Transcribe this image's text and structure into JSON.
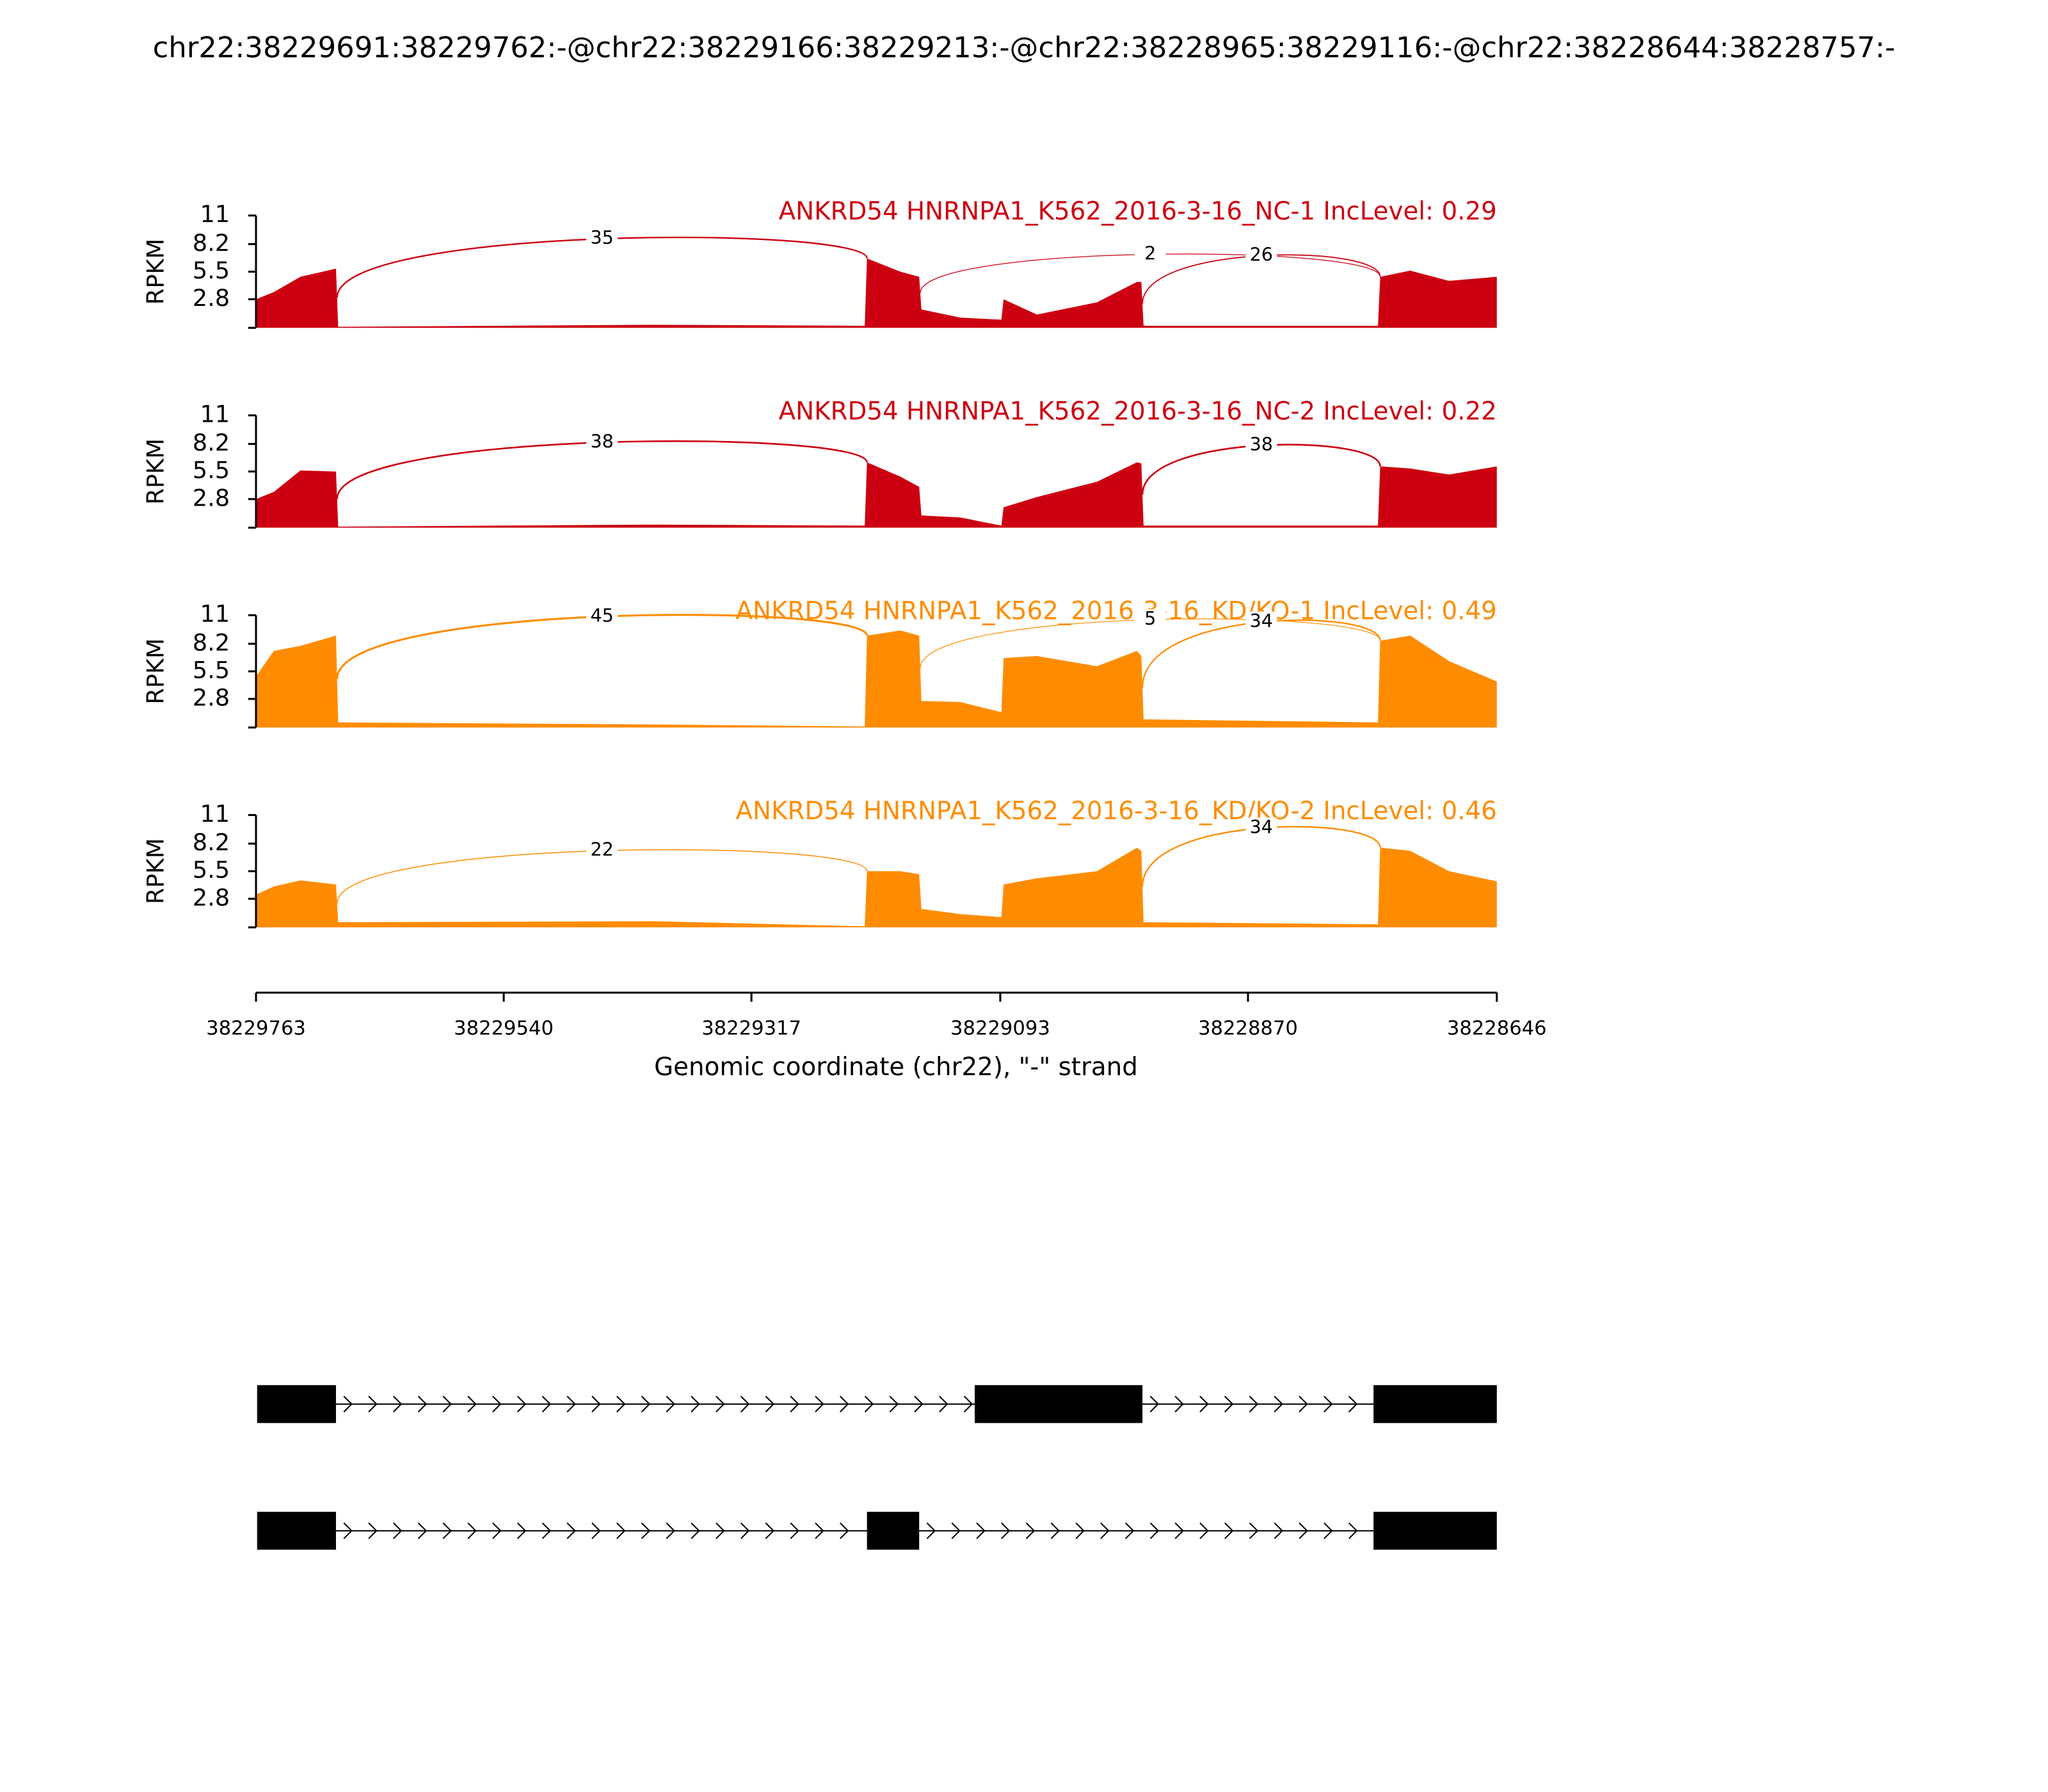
{
  "title": "chr22:38229691:38229762:-@chr22:38229166:38229213:-@chr22:38228965:38229116:-@chr22:38228644:38228757:-",
  "x_axis": {
    "xlim": [
      38229763,
      38228646
    ],
    "xticks": [
      38229763,
      38229540,
      38229317,
      38229093,
      38228870,
      38228646
    ],
    "xlabel": "Genomic coordinate (chr22), \"-\" strand"
  },
  "chart_data": [
    {
      "type": "area",
      "title": "ANKRD54 HNRNPA1_K562_2016-3-16_NC-1 IncLevel: 0.29",
      "color": "#cc0011",
      "ylabel": "RPKM",
      "ylim": [
        0,
        11
      ],
      "yticks": [
        2.8,
        5.5,
        8.2,
        11
      ],
      "x": [
        38229763,
        38229747,
        38229723,
        38229691,
        38229689,
        38229406,
        38229215,
        38229213,
        38229183,
        38229166,
        38229164,
        38229129,
        38229092,
        38229090,
        38229060,
        38229006,
        38228970,
        38228966,
        38228964,
        38228753,
        38228751,
        38228724,
        38228689,
        38228646
      ],
      "values": [
        2.8,
        3.5,
        5.0,
        5.8,
        0.1,
        0.3,
        0.2,
        6.8,
        5.5,
        5.0,
        1.8,
        1.0,
        0.8,
        2.8,
        1.3,
        2.5,
        4.5,
        4.5,
        0.2,
        0.2,
        5.0,
        5.6,
        4.6,
        5.0
      ],
      "junctions": [
        {
          "x": [
            38229690,
            38229213
          ],
          "value": 35
        },
        {
          "x": [
            38229165,
            38228751
          ],
          "value": 2
        },
        {
          "x": [
            38228965,
            38228751
          ],
          "value": 26
        }
      ]
    },
    {
      "type": "area",
      "title": "ANKRD54 HNRNPA1_K562_2016-3-16_NC-2 IncLevel: 0.22",
      "color": "#cc0011",
      "ylabel": "RPKM",
      "ylim": [
        0,
        11
      ],
      "yticks": [
        2.8,
        5.5,
        8.2,
        11
      ],
      "x": [
        38229763,
        38229747,
        38229723,
        38229691,
        38229689,
        38229406,
        38229215,
        38229213,
        38229183,
        38229166,
        38229164,
        38229129,
        38229092,
        38229090,
        38229060,
        38229006,
        38228970,
        38228966,
        38228964,
        38228753,
        38228751,
        38228724,
        38228689,
        38228646
      ],
      "values": [
        2.8,
        3.5,
        5.6,
        5.5,
        0.1,
        0.3,
        0.2,
        6.4,
        5.0,
        4.0,
        1.2,
        1.0,
        0.2,
        2.0,
        3.0,
        4.5,
        6.4,
        6.3,
        0.2,
        0.2,
        6.0,
        5.8,
        5.2,
        6.0
      ],
      "junctions": [
        {
          "x": [
            38229690,
            38229213
          ],
          "value": 38
        },
        {
          "x": [
            38228965,
            38228751
          ],
          "value": 38
        }
      ]
    },
    {
      "type": "area",
      "title": "ANKRD54 HNRNPA1_K562_2016-3-16_KD/KO-1 IncLevel: 0.49",
      "color": "#ff8c00",
      "ylabel": "RPKM",
      "ylim": [
        0,
        11
      ],
      "yticks": [
        2.8,
        5.5,
        8.2,
        11
      ],
      "x": [
        38229763,
        38229747,
        38229723,
        38229691,
        38229689,
        38229406,
        38229215,
        38229213,
        38229183,
        38229166,
        38229164,
        38229129,
        38229092,
        38229090,
        38229060,
        38229006,
        38228970,
        38228966,
        38228964,
        38228753,
        38228751,
        38228724,
        38228689,
        38228646
      ],
      "values": [
        5.0,
        7.5,
        8.0,
        9.0,
        0.5,
        0.3,
        0.1,
        9.0,
        9.5,
        9.0,
        2.6,
        2.5,
        1.5,
        6.8,
        7.0,
        6.0,
        7.5,
        7.0,
        0.8,
        0.5,
        8.5,
        9.0,
        6.5,
        4.5
      ],
      "junctions": [
        {
          "x": [
            38229690,
            38229213
          ],
          "value": 45
        },
        {
          "x": [
            38229165,
            38228751
          ],
          "value": 5
        },
        {
          "x": [
            38228965,
            38228751
          ],
          "value": 34
        }
      ]
    },
    {
      "type": "area",
      "title": "ANKRD54 HNRNPA1_K562_2016-3-16_KD/KO-2 IncLevel: 0.46",
      "color": "#ff8c00",
      "ylabel": "RPKM",
      "ylim": [
        0,
        11
      ],
      "yticks": [
        2.8,
        5.5,
        8.2,
        11
      ],
      "x": [
        38229763,
        38229747,
        38229723,
        38229691,
        38229689,
        38229406,
        38229215,
        38229213,
        38229183,
        38229166,
        38229164,
        38229129,
        38229092,
        38229090,
        38229060,
        38229006,
        38228970,
        38228966,
        38228964,
        38228753,
        38228751,
        38228724,
        38228689,
        38228646
      ],
      "values": [
        3.2,
        4.0,
        4.6,
        4.2,
        0.5,
        0.6,
        0.1,
        5.5,
        5.5,
        5.2,
        1.8,
        1.3,
        1.0,
        4.2,
        4.8,
        5.5,
        7.8,
        7.5,
        0.5,
        0.3,
        7.8,
        7.5,
        5.5,
        4.5
      ],
      "junctions": [
        {
          "x": [
            38229690,
            38229213
          ],
          "value": 22
        },
        {
          "x": [
            38228965,
            38228751
          ],
          "value": 34
        }
      ]
    }
  ],
  "gene_models": [
    {
      "exons": [
        [
          38229762,
          38229691
        ],
        [
          38229116,
          38228965
        ],
        [
          38228757,
          38228646
        ]
      ]
    },
    {
      "exons": [
        [
          38229762,
          38229691
        ],
        [
          38229213,
          38229166
        ],
        [
          38228757,
          38228646
        ]
      ]
    }
  ]
}
